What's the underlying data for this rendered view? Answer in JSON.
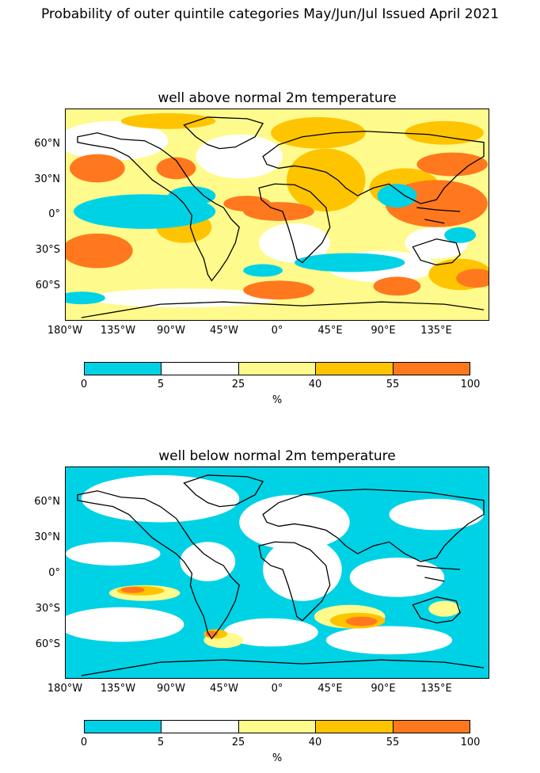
{
  "title": "Probability of outer quintile categories May/Jun/Jul Issued April 2021",
  "panels": [
    {
      "title": "well above normal 2m temperature",
      "lat_ticks": [
        "60°N",
        "30°N",
        "0°",
        "30°S",
        "60°S"
      ],
      "lon_ticks": [
        "180°W",
        "135°W",
        "90°W",
        "45°W",
        "0°",
        "45°E",
        "90°E",
        "135°E"
      ],
      "colorbar": {
        "ticks": [
          "0",
          "5",
          "25",
          "40",
          "55",
          "100"
        ],
        "unit": "%"
      }
    },
    {
      "title": "well below normal 2m temperature",
      "lat_ticks": [
        "60°N",
        "30°N",
        "0°",
        "30°S",
        "60°S"
      ],
      "lon_ticks": [
        "180°W",
        "135°W",
        "90°W",
        "45°W",
        "0°",
        "45°E",
        "90°E",
        "135°E"
      ],
      "colorbar": {
        "ticks": [
          "0",
          "5",
          "25",
          "40",
          "55",
          "100"
        ],
        "unit": "%"
      }
    }
  ],
  "legend_colors": {
    "0-5": "#00d2e6",
    "5-25": "#ffffff",
    "25-40": "#fffa8c",
    "40-55": "#ffc400",
    "55-100": "#ff781e"
  }
}
